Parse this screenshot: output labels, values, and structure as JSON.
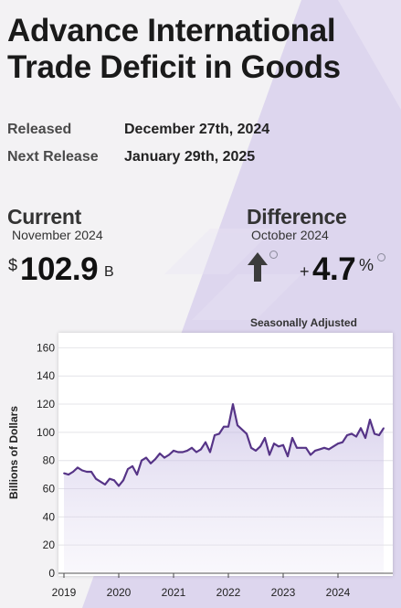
{
  "title_line1": "Advance International",
  "title_line2": "Trade Deficit in Goods",
  "released_label": "Released",
  "released_value": "December 27th, 2024",
  "next_release_label": "Next Release",
  "next_release_value": "January 29th, 2025",
  "current": {
    "heading": "Current",
    "period": "November 2024",
    "currency": "$",
    "value": "102.9",
    "unit": "B"
  },
  "difference": {
    "heading": "Difference",
    "period": "October 2024",
    "direction": "up",
    "sign": "+",
    "value": "4.7",
    "unit": "%"
  },
  "seasonal_note": "Seasonally Adjusted",
  "colors": {
    "accent": "#563487",
    "fill": "#c8bde6",
    "background_wedge": "#ddd6ee",
    "arrow": "#3c3c3c"
  },
  "chart_data": {
    "type": "area",
    "title": "",
    "xlabel": "",
    "ylabel": "Billions of Dollars",
    "ylim": [
      0,
      170
    ],
    "yticks": [
      0,
      20,
      40,
      60,
      80,
      100,
      120,
      140,
      160
    ],
    "xticks": [
      "2019",
      "2020",
      "2021",
      "2022",
      "2023",
      "2024"
    ],
    "xlim": [
      2018.9,
      2025.0
    ],
    "grid": true,
    "series": [
      {
        "x": [
          2019.0,
          2019.083,
          2019.167,
          2019.25,
          2019.333,
          2019.417,
          2019.5,
          2019.583,
          2019.667,
          2019.75,
          2019.833,
          2019.917,
          2020.0,
          2020.083,
          2020.167,
          2020.25,
          2020.333,
          2020.417,
          2020.5,
          2020.583,
          2020.667,
          2020.75,
          2020.833,
          2020.917,
          2021.0,
          2021.083,
          2021.167,
          2021.25,
          2021.333,
          2021.417,
          2021.5,
          2021.583,
          2021.667,
          2021.75,
          2021.833,
          2021.917,
          2022.0,
          2022.083,
          2022.167,
          2022.25,
          2022.333,
          2022.417,
          2022.5,
          2022.583,
          2022.667,
          2022.75,
          2022.833,
          2022.917,
          2023.0,
          2023.083,
          2023.167,
          2023.25,
          2023.333,
          2023.417,
          2023.5,
          2023.583,
          2023.667,
          2023.75,
          2023.833,
          2023.917,
          2024.0,
          2024.083,
          2024.167,
          2024.25,
          2024.333,
          2024.417,
          2024.5,
          2024.583,
          2024.667,
          2024.75,
          2024.833
        ],
        "values": [
          71,
          70,
          72,
          75,
          73,
          72,
          72,
          67,
          65,
          63,
          67,
          66,
          62,
          66,
          74,
          76,
          70,
          80,
          82,
          78,
          81,
          85,
          82,
          84,
          87,
          86,
          86,
          87,
          89,
          86,
          88,
          93,
          86,
          98,
          99,
          104,
          104,
          120,
          105,
          102,
          99,
          89,
          87,
          90,
          96,
          84,
          92,
          90,
          91,
          83,
          96,
          89,
          89,
          89,
          84,
          87,
          88,
          89,
          88,
          90,
          92,
          93,
          98,
          99,
          97,
          103,
          96,
          109,
          99,
          98,
          103
        ]
      }
    ]
  }
}
